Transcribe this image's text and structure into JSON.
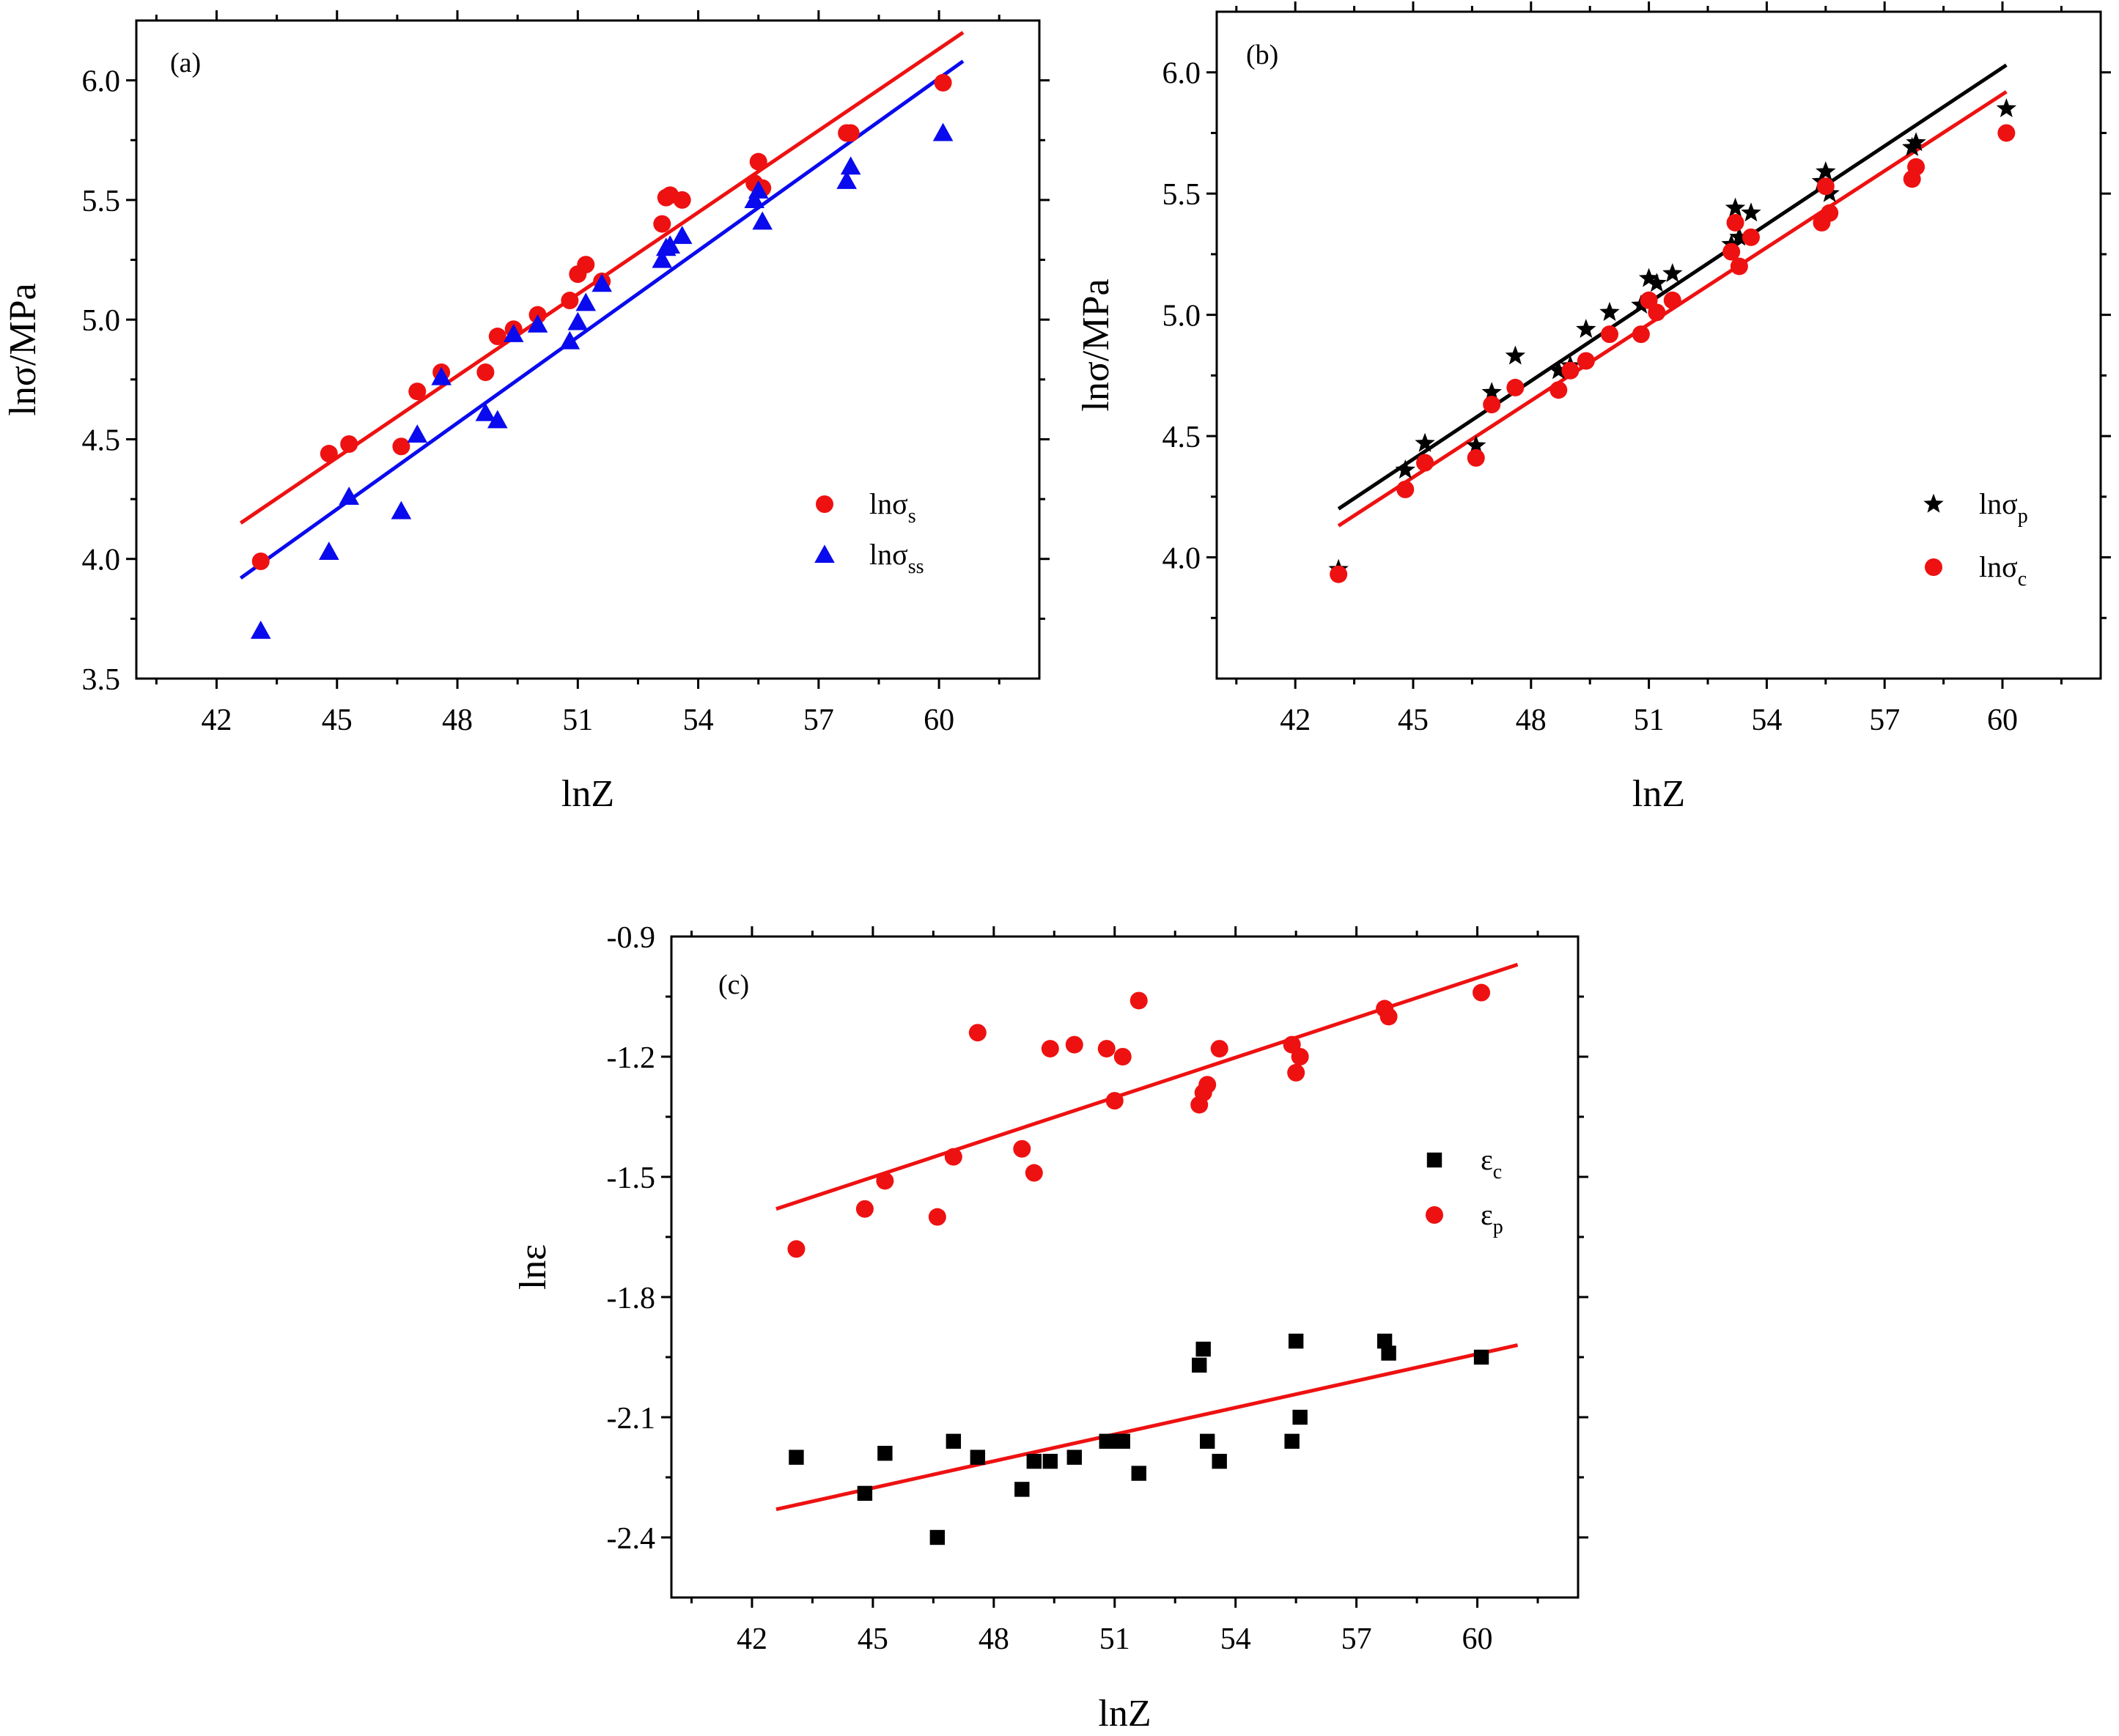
{
  "chart_data": [
    {
      "panel": "(a)",
      "type": "scatter",
      "xlabel": "lnZ",
      "ylabel": "lnσ/MPa",
      "xlim": [
        40,
        62.5
      ],
      "ylim": [
        3.5,
        6.25
      ],
      "xticks": [
        42,
        45,
        48,
        51,
        54,
        57,
        60
      ],
      "yticks": [
        3.5,
        4.0,
        4.5,
        5.0,
        5.5,
        6.0
      ],
      "ytick_labels": [
        "3.5",
        "4.0",
        "4.5",
        "5.0",
        "5.5",
        "6.0"
      ],
      "legend": [
        {
          "symbol": "lnσ",
          "sub": "s",
          "color": "#ee1111",
          "marker": "circle"
        },
        {
          "symbol": "lnσ",
          "sub": "ss",
          "color": "#0a0aee",
          "marker": "triangle"
        }
      ],
      "legend_position": "middle-right",
      "series": [
        {
          "name": "lnσs",
          "color": "#ee1111",
          "marker": "circle",
          "x": [
            43.1,
            44.8,
            45.3,
            46.6,
            47.0,
            47.6,
            48.7,
            49.0,
            49.4,
            50.0,
            50.8,
            51.0,
            51.2,
            51.6,
            53.1,
            53.2,
            53.3,
            53.6,
            55.4,
            55.5,
            55.6,
            57.7,
            57.8,
            60.1
          ],
          "y": [
            3.99,
            4.44,
            4.48,
            4.47,
            4.7,
            4.78,
            4.78,
            4.93,
            4.96,
            5.02,
            5.08,
            5.19,
            5.23,
            5.16,
            5.4,
            5.51,
            5.52,
            5.5,
            5.57,
            5.66,
            5.55,
            5.78,
            5.78,
            5.99
          ]
        },
        {
          "name": "lnσss",
          "color": "#0a0aee",
          "marker": "triangle",
          "x": [
            43.1,
            44.8,
            45.3,
            46.6,
            47.0,
            47.6,
            48.7,
            49.0,
            49.4,
            50.0,
            50.8,
            51.0,
            51.2,
            51.6,
            53.1,
            53.2,
            53.3,
            53.6,
            55.4,
            55.5,
            55.6,
            57.7,
            57.8,
            60.1
          ],
          "y": [
            3.7,
            4.03,
            4.26,
            4.2,
            4.52,
            4.76,
            4.61,
            4.58,
            4.94,
            4.98,
            4.91,
            4.99,
            5.07,
            5.15,
            5.25,
            5.3,
            5.31,
            5.35,
            5.5,
            5.54,
            5.41,
            5.58,
            5.64,
            5.78
          ]
        }
      ],
      "fit_lines": [
        {
          "color": "#ee1111",
          "x": [
            42.6,
            60.6
          ],
          "y": [
            4.15,
            6.2
          ]
        },
        {
          "color": "#0a0aee",
          "x": [
            42.6,
            60.6
          ],
          "y": [
            3.92,
            6.08
          ]
        }
      ]
    },
    {
      "panel": "(b)",
      "type": "scatter",
      "xlabel": "lnZ",
      "ylabel": "lnσ/MPa",
      "xlim": [
        40,
        62.5
      ],
      "ylim": [
        3.5,
        6.25
      ],
      "xticks": [
        42,
        45,
        48,
        51,
        54,
        57,
        60
      ],
      "yticks": [
        4.0,
        4.5,
        5.0,
        5.5,
        6.0
      ],
      "ytick_labels": [
        "4.0",
        "4.5",
        "5.0",
        "5.5",
        "6.0"
      ],
      "legend": [
        {
          "symbol": "lnσ",
          "sub": "p",
          "color": "#000000",
          "marker": "star"
        },
        {
          "symbol": "lnσ",
          "sub": "c",
          "color": "#ee1111",
          "marker": "circle"
        }
      ],
      "legend_position": "middle-right",
      "series": [
        {
          "name": "lnσp",
          "color": "#000000",
          "marker": "star",
          "x": [
            43.1,
            44.8,
            45.3,
            46.6,
            47.0,
            47.6,
            48.7,
            49.0,
            49.4,
            50.0,
            50.8,
            51.0,
            51.2,
            51.6,
            53.1,
            53.2,
            53.3,
            53.6,
            55.4,
            55.5,
            55.6,
            57.7,
            57.8,
            60.1
          ],
          "y": [
            3.95,
            4.36,
            4.47,
            4.46,
            4.68,
            4.83,
            4.77,
            4.79,
            4.94,
            5.01,
            5.04,
            5.15,
            5.13,
            5.17,
            5.29,
            5.44,
            5.32,
            5.42,
            5.55,
            5.59,
            5.5,
            5.69,
            5.71,
            5.85
          ]
        },
        {
          "name": "lnσc",
          "color": "#ee1111",
          "marker": "circle",
          "x": [
            43.1,
            44.8,
            45.3,
            46.6,
            47.0,
            47.6,
            48.7,
            49.0,
            49.4,
            50.0,
            50.8,
            51.0,
            51.2,
            51.6,
            53.1,
            53.2,
            53.3,
            53.6,
            55.4,
            55.5,
            55.6,
            57.7,
            57.8,
            60.1
          ],
          "y": [
            3.93,
            4.28,
            4.39,
            4.41,
            4.63,
            4.7,
            4.69,
            4.77,
            4.81,
            4.92,
            4.92,
            5.06,
            5.01,
            5.06,
            5.26,
            5.38,
            5.2,
            5.32,
            5.38,
            5.53,
            5.42,
            5.56,
            5.61,
            5.75
          ]
        }
      ],
      "fit_lines": [
        {
          "color": "#000000",
          "x": [
            43.1,
            60.1
          ],
          "y": [
            4.2,
            6.03
          ]
        },
        {
          "color": "#ee1111",
          "x": [
            43.1,
            60.1
          ],
          "y": [
            4.13,
            5.92
          ]
        }
      ]
    },
    {
      "panel": "(c)",
      "type": "scatter",
      "xlabel": "lnZ",
      "ylabel": "lnε",
      "xlim": [
        40,
        62.5
      ],
      "ylim": [
        -2.55,
        -0.9
      ],
      "xticks": [
        42,
        45,
        48,
        51,
        54,
        57,
        60
      ],
      "yticks": [
        -2.4,
        -2.1,
        -1.8,
        -1.5,
        -1.2,
        -0.9
      ],
      "ytick_labels": [
        "-2.4",
        "-2.1",
        "-1.8",
        "-1.5",
        "-1.2",
        "-0.9"
      ],
      "legend": [
        {
          "symbol": "ε",
          "sub": "c",
          "color": "#000000",
          "marker": "square"
        },
        {
          "symbol": "ε",
          "sub": "p",
          "color": "#ee1111",
          "marker": "circle"
        }
      ],
      "legend_position": "middle-right",
      "series": [
        {
          "name": "εc",
          "color": "#000000",
          "marker": "square",
          "x": [
            43.1,
            44.8,
            45.3,
            46.6,
            47.0,
            47.6,
            48.7,
            49.0,
            49.4,
            50.0,
            50.8,
            51.0,
            51.2,
            51.6,
            53.1,
            53.2,
            53.3,
            53.6,
            55.4,
            55.5,
            55.6,
            57.7,
            57.8,
            60.1
          ],
          "y": [
            -2.2,
            -2.29,
            -2.19,
            -2.4,
            -2.16,
            -2.2,
            -2.28,
            -2.21,
            -2.21,
            -2.2,
            -2.16,
            -2.16,
            -2.16,
            -2.24,
            -1.97,
            -1.93,
            -2.16,
            -2.21,
            -2.16,
            -1.91,
            -2.1,
            -1.91,
            -1.94,
            -1.95
          ]
        },
        {
          "name": "εp",
          "color": "#ee1111",
          "marker": "circle",
          "x": [
            43.1,
            44.8,
            45.3,
            46.6,
            47.0,
            47.6,
            48.7,
            49.0,
            49.4,
            50.0,
            50.8,
            51.0,
            51.2,
            51.6,
            53.1,
            53.2,
            53.3,
            53.6,
            55.4,
            55.5,
            55.6,
            57.7,
            57.8,
            60.1
          ],
          "y": [
            -1.68,
            -1.58,
            -1.51,
            -1.6,
            -1.45,
            -1.14,
            -1.43,
            -1.49,
            -1.18,
            -1.17,
            -1.18,
            -1.31,
            -1.2,
            -1.06,
            -1.32,
            -1.29,
            -1.27,
            -1.18,
            -1.17,
            -1.24,
            -1.2,
            -1.08,
            -1.1,
            -1.04
          ]
        }
      ],
      "fit_lines": [
        {
          "color": "#ee1111",
          "x": [
            42.6,
            61.0
          ],
          "y": [
            -1.58,
            -0.97
          ]
        },
        {
          "color": "#ee1111",
          "x": [
            42.6,
            61.0
          ],
          "y": [
            -2.33,
            -1.92
          ]
        }
      ]
    }
  ]
}
